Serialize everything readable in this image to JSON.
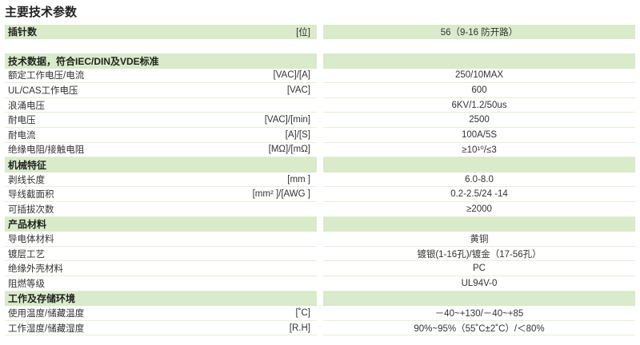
{
  "title": "主要技术参数",
  "rows": [
    {
      "type": "header",
      "name": "插针数",
      "unit": "[位]",
      "value": "56（9-16 防开路）"
    },
    {
      "type": "blank"
    },
    {
      "type": "header",
      "name": "技术数据，符合IEC/DIN及VDE标准",
      "unit": "",
      "value": ""
    },
    {
      "type": "data",
      "name": "额定工作电压/电流",
      "unit": "[VAC]/[A]",
      "value": "250/10MAX"
    },
    {
      "type": "data",
      "name": "UL/CAS工作电压",
      "unit": "[VAC]",
      "value": "600"
    },
    {
      "type": "data",
      "name": "浪涌电压",
      "unit": "",
      "value": "6KV/1.2/50us"
    },
    {
      "type": "data",
      "name": "耐电压",
      "unit": "[VAC]/[min]",
      "value": "2500"
    },
    {
      "type": "data",
      "name": "耐电流",
      "unit": "[A]/[S]",
      "value": "100A/5S"
    },
    {
      "type": "data",
      "name": "绝缘电阻/接触电阻",
      "unit": "[MΩ]/[mΩ]",
      "value": "≥10¹⁰/≤3"
    },
    {
      "type": "header",
      "name": "机械特征",
      "unit": "",
      "value": ""
    },
    {
      "type": "data",
      "name": "剥线长度",
      "unit": "[mm ]",
      "value": "6.0-8.0"
    },
    {
      "type": "data",
      "name": "导线截面积",
      "unit": "[mm² ]/[AWG ]",
      "value": "0.2-2.5/24 -14"
    },
    {
      "type": "data",
      "name": "可插拔次数",
      "unit": "",
      "value": "≥2000"
    },
    {
      "type": "header",
      "name": "产品材料",
      "unit": "",
      "value": ""
    },
    {
      "type": "data",
      "name": "导电体材料",
      "unit": "",
      "value": "黄铜"
    },
    {
      "type": "data",
      "name": "镀层工艺",
      "unit": "",
      "value": "镀银(1-16孔)/镀金（17-56孔）"
    },
    {
      "type": "data",
      "name": "绝缘外壳材料",
      "unit": "",
      "value": "PC"
    },
    {
      "type": "data",
      "name": "阻燃等级",
      "unit": "",
      "value": "UL94V-0"
    },
    {
      "type": "header",
      "name": "工作及存储环境",
      "unit": "",
      "value": ""
    },
    {
      "type": "data",
      "name": "使用温度/储藏温度",
      "unit": "[˚C]",
      "value": "－40~+130/－40~+85"
    },
    {
      "type": "data",
      "name": "工作湿度/储藏湿度",
      "unit": "[R.H]",
      "value": "90%~95%（55˚C±2˚C）/＜80%"
    }
  ],
  "colors": {
    "header_bg": "#d9ebca",
    "divider": "#e3f0d8"
  }
}
